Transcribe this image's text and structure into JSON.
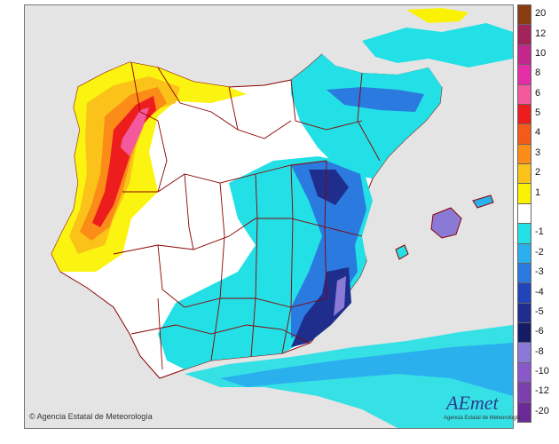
{
  "map": {
    "legend": [
      {
        "label": "20",
        "color": "#8a3d12"
      },
      {
        "label": "12",
        "color": "#a3235b"
      },
      {
        "label": "10",
        "color": "#c4278c"
      },
      {
        "label": "8",
        "color": "#e42ea8"
      },
      {
        "label": "6",
        "color": "#f4599d"
      },
      {
        "label": "5",
        "color": "#ee1d1d"
      },
      {
        "label": "4",
        "color": "#f45a1a"
      },
      {
        "label": "3",
        "color": "#fa8c17"
      },
      {
        "label": "2",
        "color": "#fbc21a"
      },
      {
        "label": "1",
        "color": "#fbf203"
      },
      {
        "label": "",
        "color": "#ffffff"
      },
      {
        "label": "-1",
        "color": "#22e0e6"
      },
      {
        "label": "-2",
        "color": "#2bb0ee"
      },
      {
        "label": "-3",
        "color": "#2a7ae0"
      },
      {
        "label": "-4",
        "color": "#2144b8"
      },
      {
        "label": "-5",
        "color": "#1f2e8c"
      },
      {
        "label": "-6",
        "color": "#141c66"
      },
      {
        "label": "-8",
        "color": "#8a7ad6"
      },
      {
        "label": "-10",
        "color": "#8a58c8"
      },
      {
        "label": "-12",
        "color": "#7d3fae"
      },
      {
        "label": "-20",
        "color": "#6c2a96"
      }
    ],
    "copyright": "Agencia Estatal de Meteorología",
    "logo_text": "AEmet",
    "logo_subtitle": "Agencia Estatal de Meteorología",
    "colors": {
      "land": "#ffffff",
      "sea": "#e4e4e4",
      "borders": "#8b0000"
    }
  }
}
